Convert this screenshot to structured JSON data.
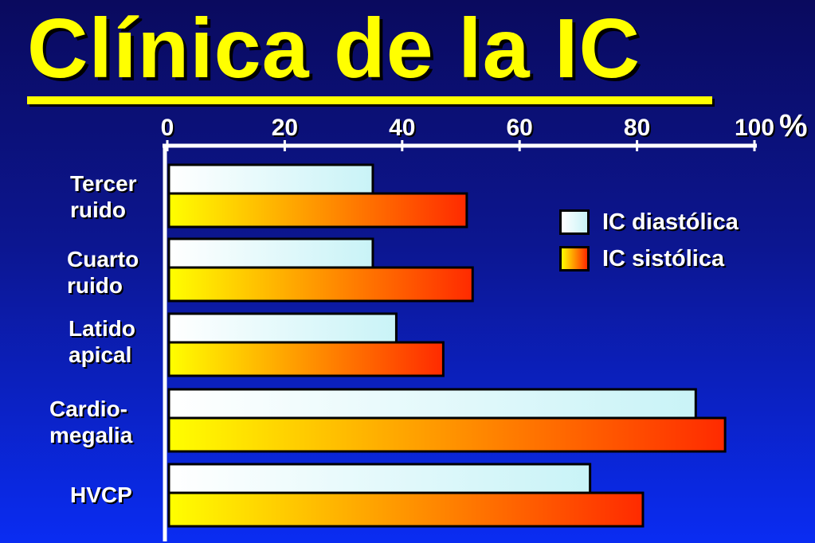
{
  "title": "Clínica de la IC",
  "colors": {
    "title": "#ffff00",
    "diastolic_light": "#ffffff",
    "diastolic_dark": "#c9f3f7",
    "systolic_start": "#ffff00",
    "systolic_end": "#ff2a00",
    "axis": "#ffffff",
    "bar_border": "#000000"
  },
  "chart_data": {
    "type": "bar",
    "orientation": "horizontal",
    "title": "Clínica de la IC",
    "x_unit": "%",
    "xlim": [
      0,
      100
    ],
    "x_ticks": [
      "0",
      "20",
      "40",
      "60",
      "80",
      "100"
    ],
    "categories": [
      "Tercer\nruido",
      "Cuarto\nruido",
      "Latido\napical",
      "Cardio-\nmegalia",
      "HVCP"
    ],
    "series": [
      {
        "name": "IC diastólica",
        "values": [
          35,
          35,
          39,
          90,
          72
        ]
      },
      {
        "name": "IC sistólica",
        "values": [
          51,
          52,
          47,
          95,
          81
        ]
      }
    ],
    "legend": {
      "position": "right",
      "items": [
        "IC diastólica",
        "IC sistólica"
      ]
    },
    "grid": false
  }
}
